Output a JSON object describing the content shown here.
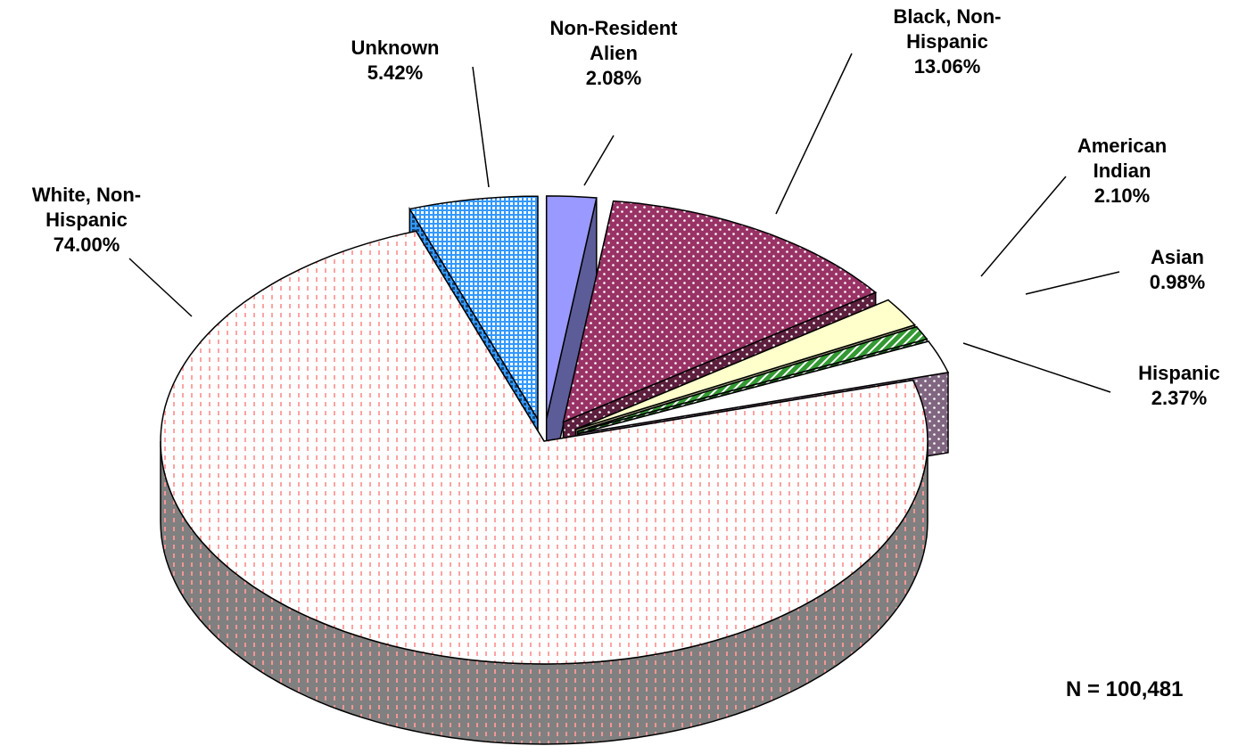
{
  "chart_data": {
    "type": "pie3d",
    "categories": [
      "Non-Resident Alien",
      "Black, Non-Hispanic",
      "American Indian",
      "Asian",
      "Hispanic",
      "White, Non-Hispanic",
      "Unknown"
    ],
    "values": [
      2.08,
      13.06,
      2.1,
      0.98,
      2.37,
      74.0,
      5.42
    ],
    "value_labels": [
      "2.08%",
      "13.06%",
      "2.10%",
      "0.98%",
      "2.37%",
      "74.00%",
      "5.42%"
    ],
    "colors": [
      "#9999ff",
      "#993366",
      "#ffffcc",
      "#339933",
      "#cc99cc",
      "#ff9999",
      "#3399ff"
    ],
    "annotation": "N = 100,481"
  }
}
